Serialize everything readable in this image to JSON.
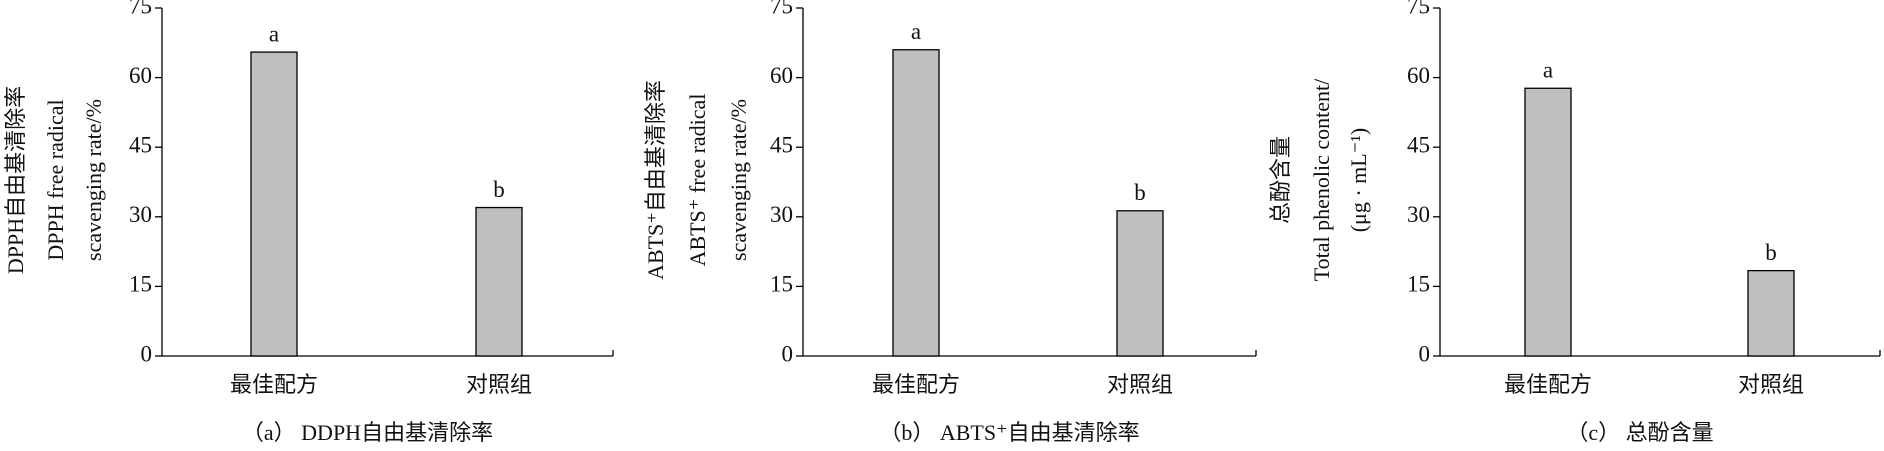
{
  "chart_data": [
    {
      "type": "bar",
      "categories": [
        "最佳配方",
        "对照组"
      ],
      "values": [
        65.5,
        32
      ],
      "annotations": [
        "a",
        "b"
      ],
      "ylabel": [
        "DPPH自由基清除率",
        "DPPH free radical",
        "scavenging rate/%"
      ],
      "caption": "（a） DDPH自由基清除率",
      "color": "#bfbfbf",
      "ylim": [
        0,
        75
      ],
      "yticks": [
        0,
        15,
        30,
        45,
        60,
        75
      ]
    },
    {
      "type": "bar",
      "categories": [
        "最佳配方",
        "对照组"
      ],
      "values": [
        66,
        31.3
      ],
      "annotations": [
        "a",
        "b"
      ],
      "ylabel": [
        "ABTS⁺自由基清除率",
        "ABTS⁺ free radical",
        "scavenging rate/%"
      ],
      "caption": "（b） ABTS⁺自由基清除率",
      "color": "#bfbfbf",
      "ylim": [
        0,
        75
      ],
      "yticks": [
        0,
        15,
        30,
        45,
        60,
        75
      ]
    },
    {
      "type": "bar",
      "categories": [
        "最佳配方",
        "对照组"
      ],
      "values": [
        57.7,
        18.4
      ],
      "annotations": [
        "a",
        "b"
      ],
      "ylabel": [
        "总酚含量",
        "Total phenolic content/",
        "(μg · mL⁻¹)"
      ],
      "caption": "（c） 总酚含量",
      "color": "#bfbfbf",
      "ylim": [
        0,
        75
      ],
      "yticks": [
        0,
        15,
        30,
        45,
        60,
        75
      ]
    }
  ]
}
